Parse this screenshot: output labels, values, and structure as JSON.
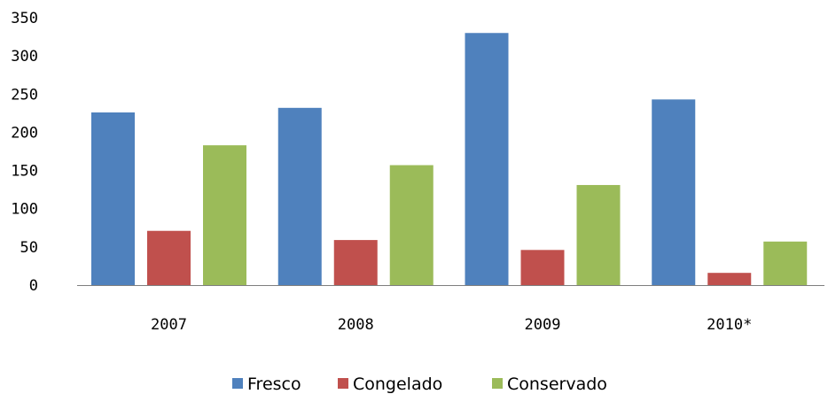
{
  "chart_data": {
    "type": "bar",
    "categories": [
      "2007",
      "2008",
      "2009",
      "2010*"
    ],
    "series": [
      {
        "name": "Fresco",
        "values": [
          226,
          232,
          330,
          243
        ],
        "color": "#4f81bd"
      },
      {
        "name": "Congelado",
        "values": [
          71,
          59,
          46,
          16
        ],
        "color": "#c0504d"
      },
      {
        "name": "Conservado",
        "values": [
          183,
          157,
          131,
          57
        ],
        "color": "#9bbb59"
      }
    ],
    "y_ticks": [
      "0",
      "50",
      "100",
      "150",
      "200",
      "250",
      "300",
      "350"
    ],
    "ylim": [
      0,
      350
    ],
    "grid": false,
    "legend_position": "bottom"
  }
}
